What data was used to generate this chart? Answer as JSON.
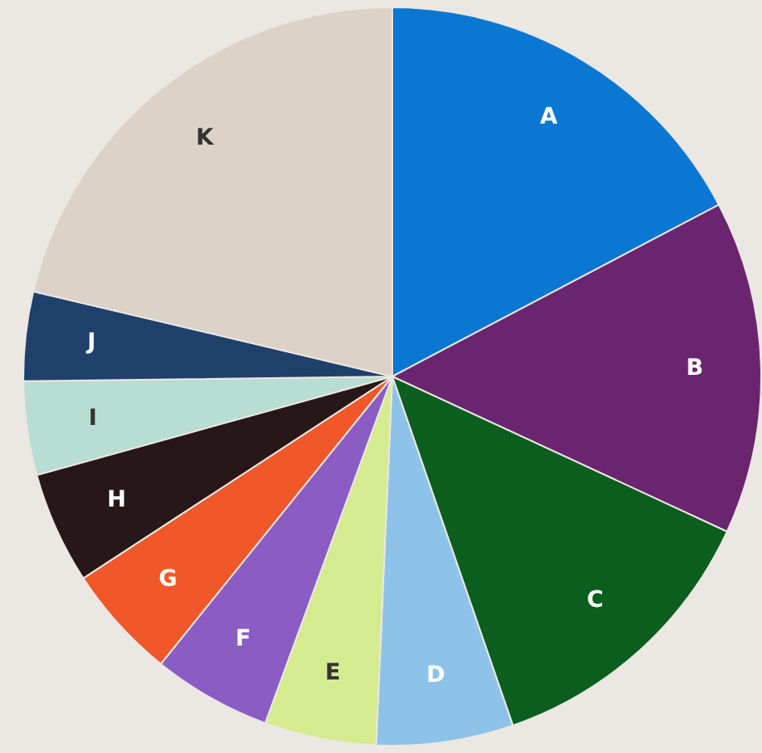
{
  "chart_data": {
    "type": "pie",
    "categories": [
      "A",
      "B",
      "C",
      "D",
      "E",
      "F",
      "G",
      "H",
      "I",
      "J",
      "K"
    ],
    "values": [
      17.3,
      14.6,
      12.8,
      6,
      4.9,
      5.2,
      5,
      4.9,
      4.1,
      3.9,
      21.3
    ],
    "colors": [
      "#0a78d2",
      "#6b2470",
      "#0b5e1e",
      "#8dc3e8",
      "#d5eb8f",
      "#8a5cc4",
      "#f0582a",
      "#281719",
      "#b8ddd2",
      "#20406c",
      "#ddd2c8"
    ]
  }
}
